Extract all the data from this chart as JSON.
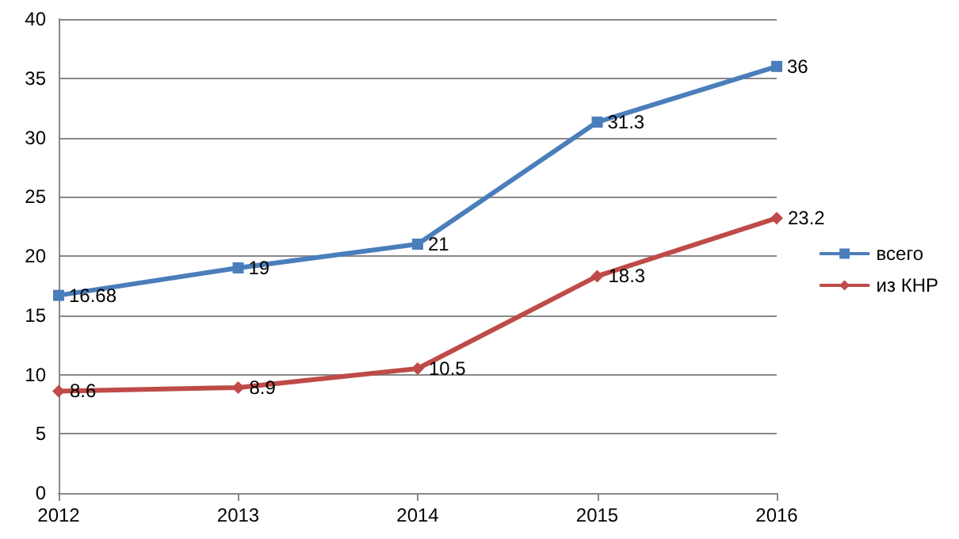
{
  "chart_data": {
    "type": "line",
    "categories": [
      "2012",
      "2013",
      "2014",
      "2015",
      "2016"
    ],
    "series": [
      {
        "name": "всего",
        "color": "#4a7ebb",
        "marker": "square",
        "values": [
          16.68,
          19,
          21,
          31.3,
          36
        ]
      },
      {
        "name": "из КНР",
        "color": "#be4b48",
        "marker": "diamond",
        "values": [
          8.6,
          8.9,
          10.5,
          18.3,
          23.2
        ]
      }
    ],
    "ylim": [
      0,
      40
    ],
    "yticks": [
      0,
      5,
      10,
      15,
      20,
      25,
      30,
      35,
      40
    ],
    "grid": "y",
    "legend": "right",
    "data_labels": true
  }
}
